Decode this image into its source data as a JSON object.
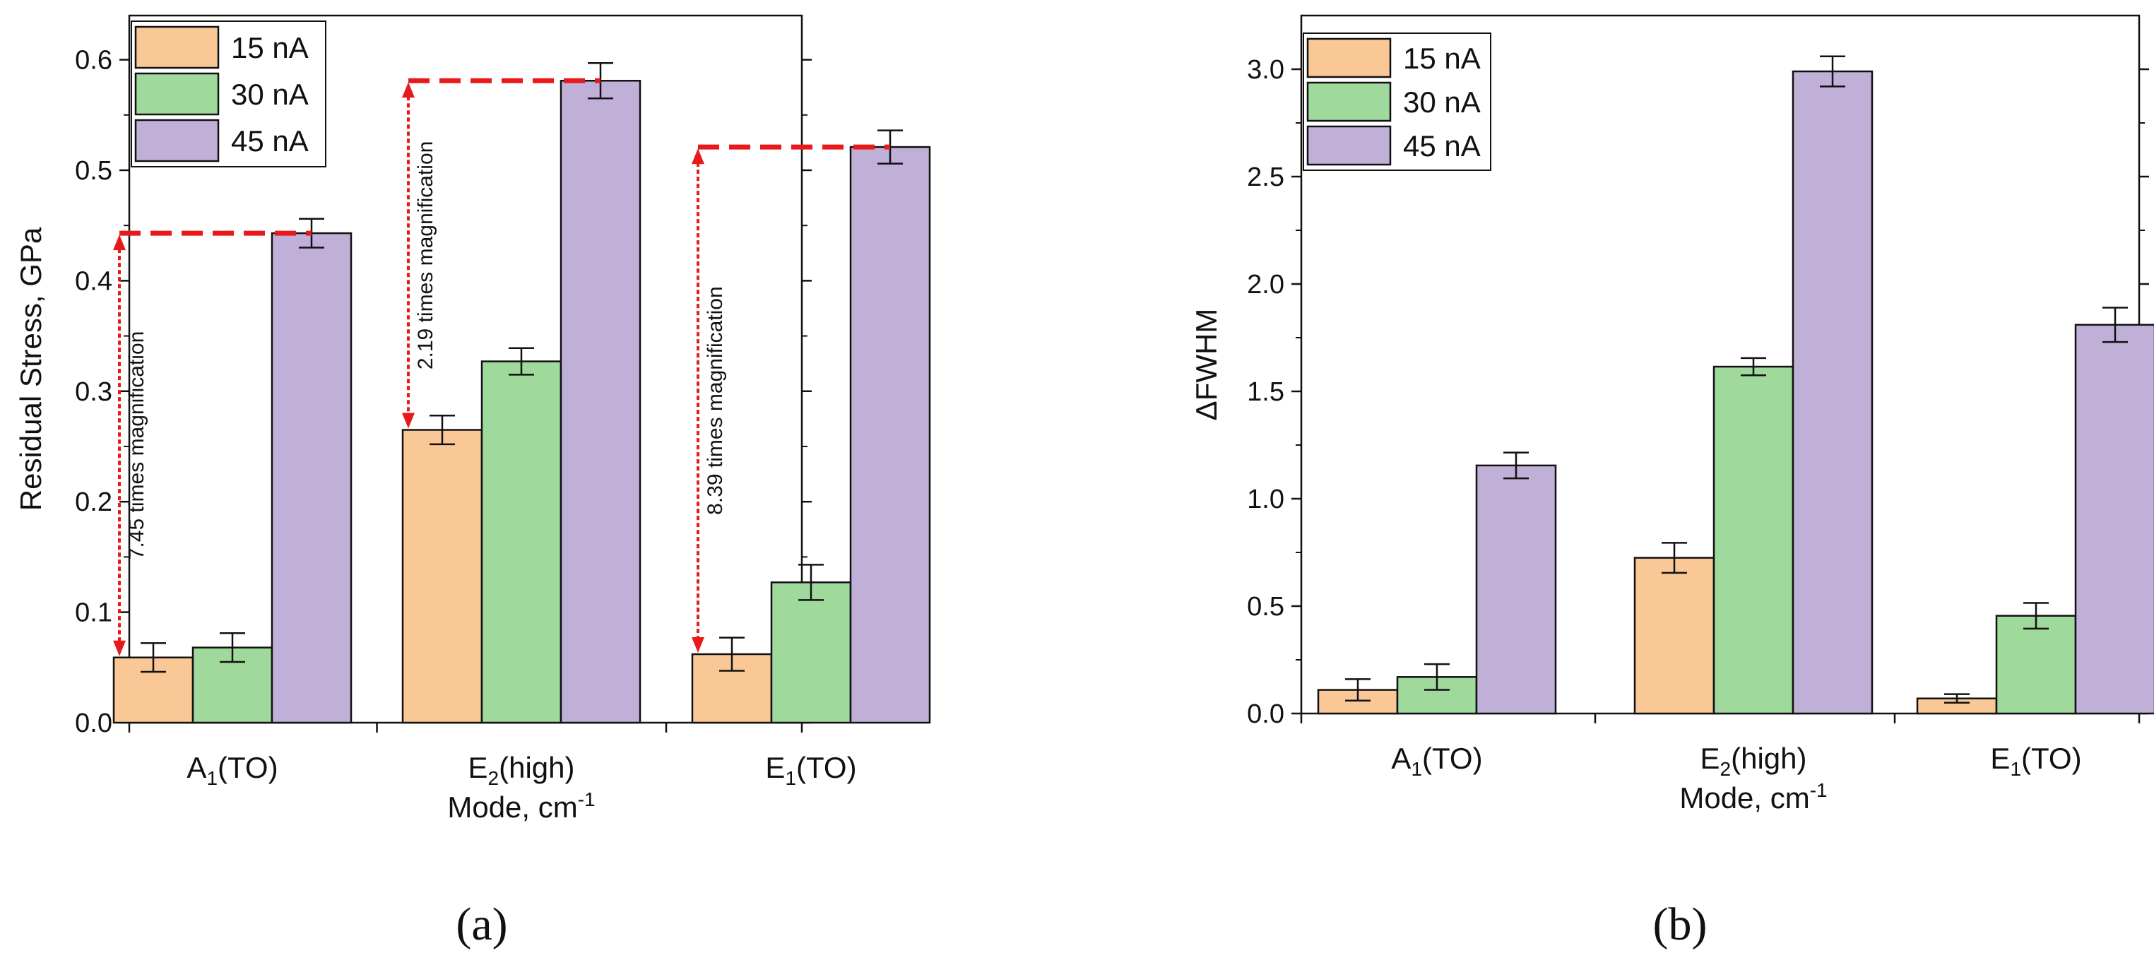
{
  "colors": {
    "c15": "#fac897",
    "c30": "#9fd99c",
    "c45": "#c0b0d8",
    "annotation": "#e8191b",
    "stroke": "#111111"
  },
  "chart_data": [
    {
      "type": "bar",
      "panel_label": "(a)",
      "categories": [
        "A1(TO)",
        "E2(high)",
        "E1(TO)"
      ],
      "category_labels": [
        {
          "main": "A",
          "sub": "1",
          "rest": "(TO)"
        },
        {
          "main": "E",
          "sub": "2",
          "rest": "(high)"
        },
        {
          "main": "E",
          "sub": "1",
          "rest": "(TO)"
        }
      ],
      "series": [
        {
          "name": "15 nA",
          "values": [
            0.059,
            0.265,
            0.062
          ],
          "errors": [
            0.013,
            0.013,
            0.015
          ]
        },
        {
          "name": "30 nA",
          "values": [
            0.068,
            0.327,
            0.127
          ],
          "errors": [
            0.013,
            0.012,
            0.016
          ]
        },
        {
          "name": "45 nA",
          "values": [
            0.443,
            0.581,
            0.521
          ],
          "errors": [
            0.013,
            0.016,
            0.015
          ]
        }
      ],
      "xlabel": "Mode, cm",
      "xlabel_sup": "-1",
      "ylabel": "Residual Stress, GPa",
      "ylim": [
        0,
        0.64
      ],
      "yticks": [
        0.0,
        0.1,
        0.2,
        0.3,
        0.4,
        0.5,
        0.6
      ],
      "ytick_labels": [
        "0.0",
        "0.1",
        "0.2",
        "0.3",
        "0.4",
        "0.5",
        "0.6"
      ],
      "legend": "top-left",
      "annotations": [
        {
          "text": "7.45 times magnification",
          "category": 0,
          "from": 0.059,
          "to": 0.443
        },
        {
          "text": "2.19 times magnification",
          "category": 1,
          "from": 0.265,
          "to": 0.581
        },
        {
          "text": "8.39 times magnification",
          "category": 2,
          "from": 0.062,
          "to": 0.521
        }
      ]
    },
    {
      "type": "bar",
      "panel_label": "(b)",
      "categories": [
        "A1(TO)",
        "E2(high)",
        "E1(TO)"
      ],
      "category_labels": [
        {
          "main": "A",
          "sub": "1",
          "rest": "(TO)"
        },
        {
          "main": "E",
          "sub": "2",
          "rest": "(high)"
        },
        {
          "main": "E",
          "sub": "1",
          "rest": "(TO)"
        }
      ],
      "series": [
        {
          "name": "15 nA",
          "values": [
            0.11,
            0.725,
            0.07
          ],
          "errors": [
            0.05,
            0.07,
            0.02
          ]
        },
        {
          "name": "30 nA",
          "values": [
            0.17,
            1.615,
            0.455
          ],
          "errors": [
            0.06,
            0.04,
            0.06
          ]
        },
        {
          "name": "45 nA",
          "values": [
            1.155,
            2.99,
            1.81
          ],
          "errors": [
            0.06,
            0.07,
            0.08
          ]
        }
      ],
      "xlabel": "Mode, cm",
      "xlabel_sup": "-1",
      "ylabel": "ΔFWHM",
      "ylim": [
        0,
        3.25
      ],
      "yticks": [
        0.0,
        0.5,
        1.0,
        1.5,
        2.0,
        2.5,
        3.0
      ],
      "ytick_labels": [
        "0.0",
        "0.5",
        "1.0",
        "1.5",
        "2.0",
        "2.5",
        "3.0"
      ],
      "legend": "top-left"
    }
  ]
}
